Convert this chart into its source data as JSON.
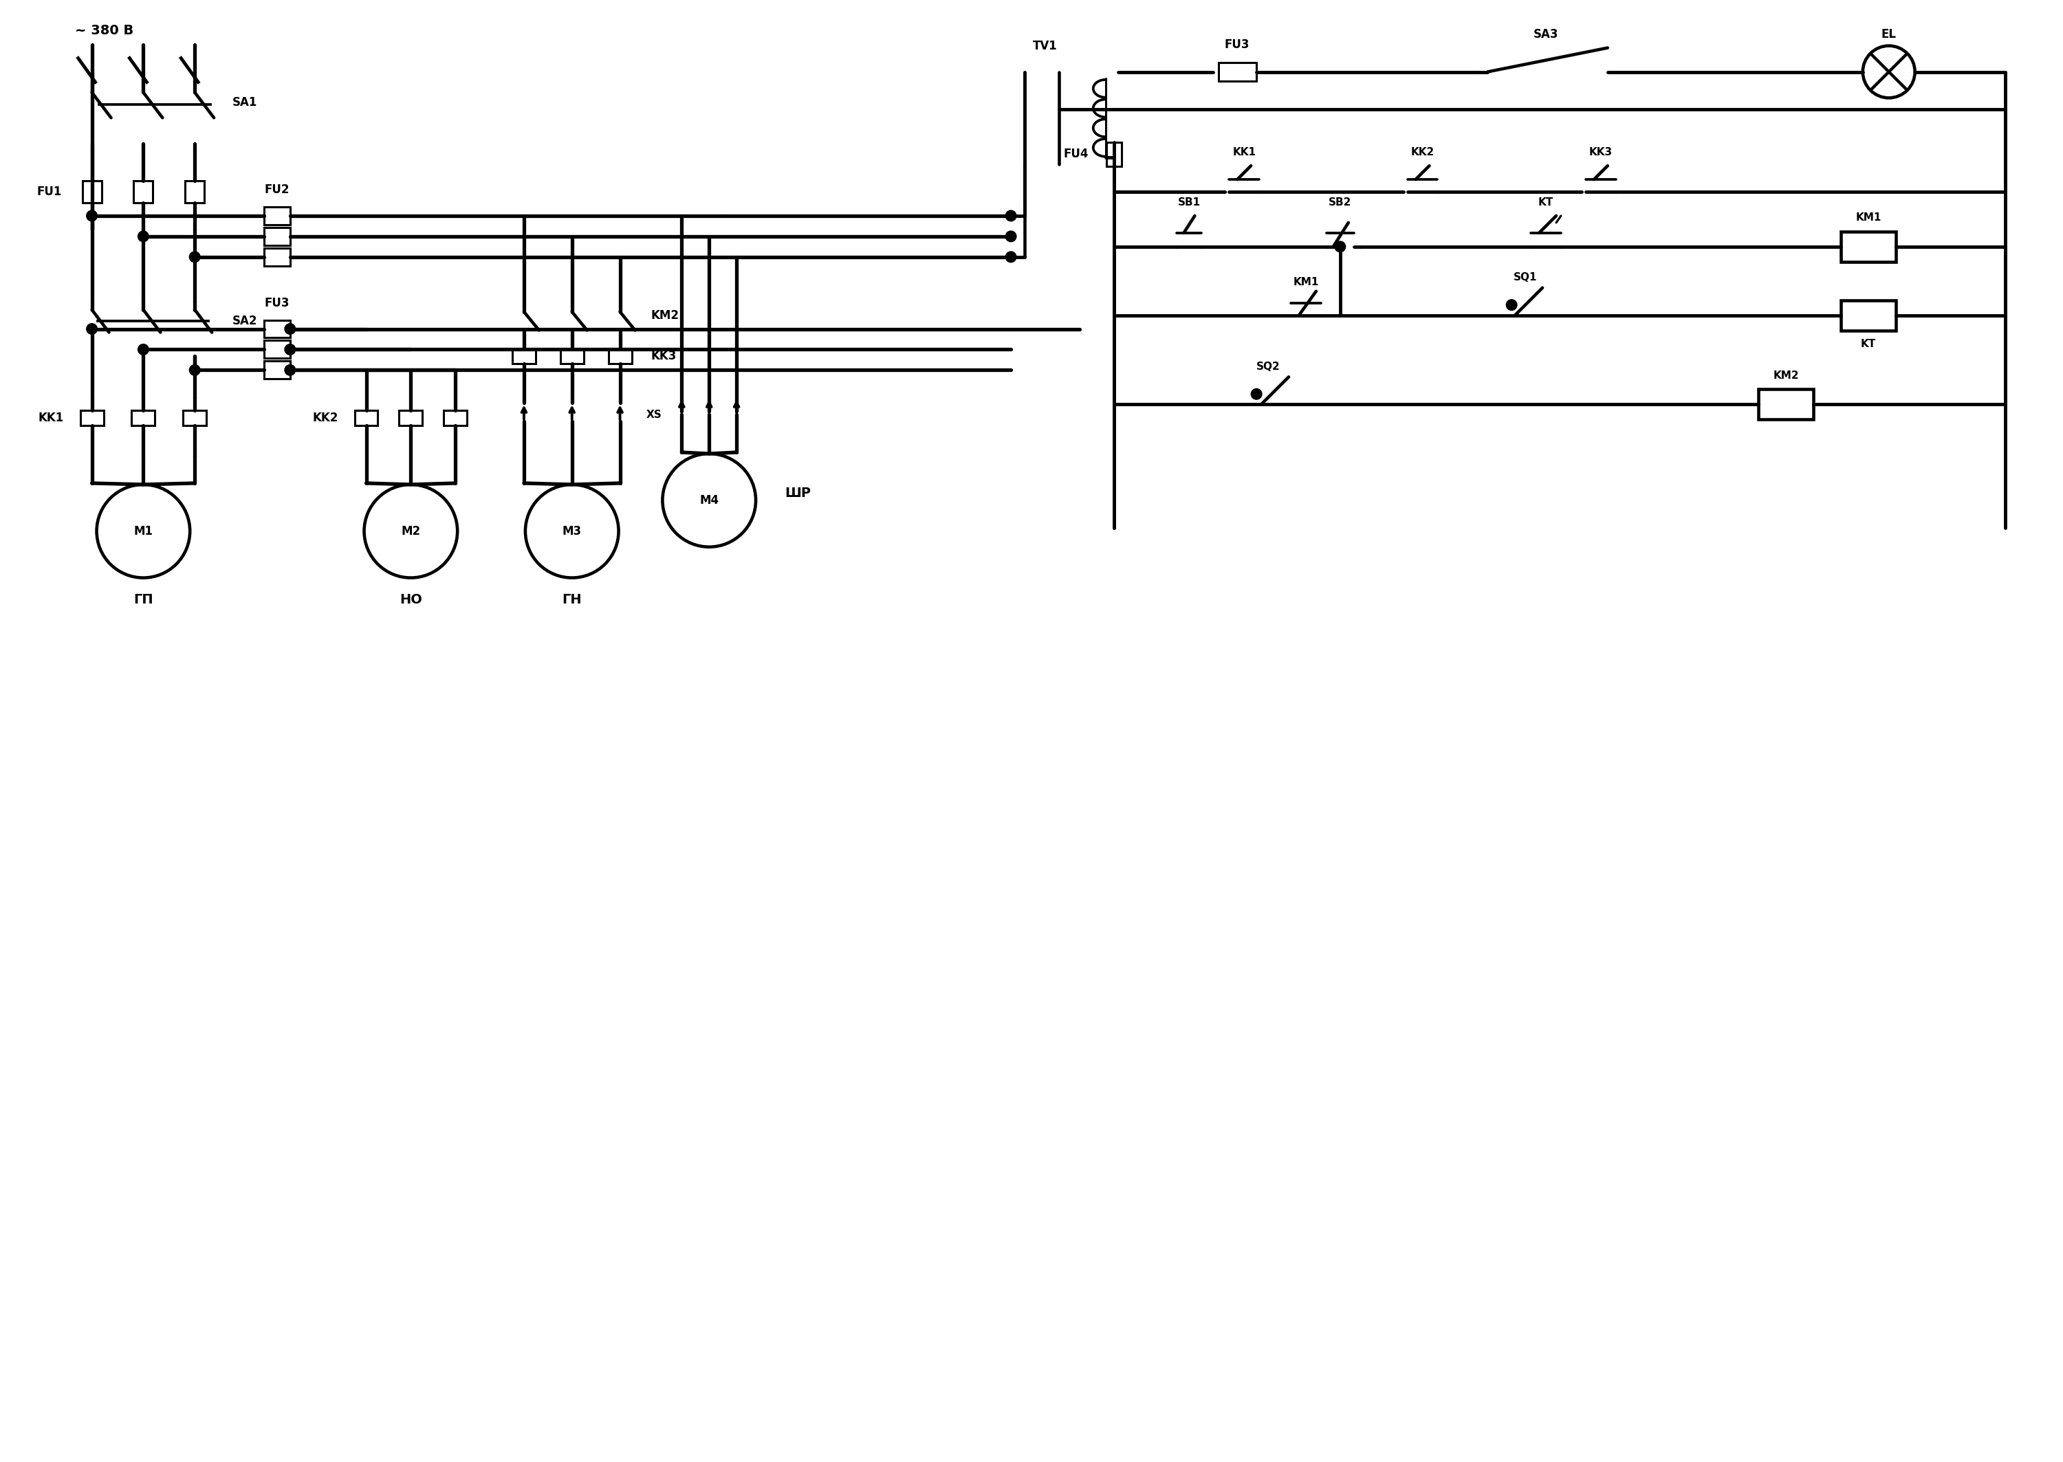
{
  "bg": "#ffffff",
  "lc": "#000000",
  "lw": 2.2,
  "tlw": 3.8,
  "labels": {
    "voltage": "~ 380 B",
    "SA1": "SA1",
    "SA2": "SA2",
    "SA3": "SA3",
    "FU1": "FU1",
    "FU2": "FU2",
    "FU3l": "FU3",
    "FU3r": "FU3",
    "FU4": "FU4",
    "KK1l": "KK1",
    "KK2l": "KK2",
    "KK3": "KK3",
    "KK1r": "KK1",
    "KK2r": "KK2",
    "KM1coil": "KM1",
    "KM2coil": "KM2",
    "KM1cont": "KM1",
    "KM2cont": "KM2",
    "KTcoil": "KT",
    "KTcont": "KT",
    "SB1": "SB1",
    "SB2": "SB2",
    "SQ1": "SQ1",
    "SQ2": "SQ2",
    "TV1": "TV1",
    "EL": "EL",
    "XS": "XS",
    "M1": "M1",
    "M2": "M2",
    "M3": "M3",
    "M4": "M4",
    "GP": "ГП",
    "NO": "НО",
    "GN": "ГН",
    "SHR": "ШР"
  },
  "fs": 11,
  "fs_big": 14,
  "fs_label": 12
}
